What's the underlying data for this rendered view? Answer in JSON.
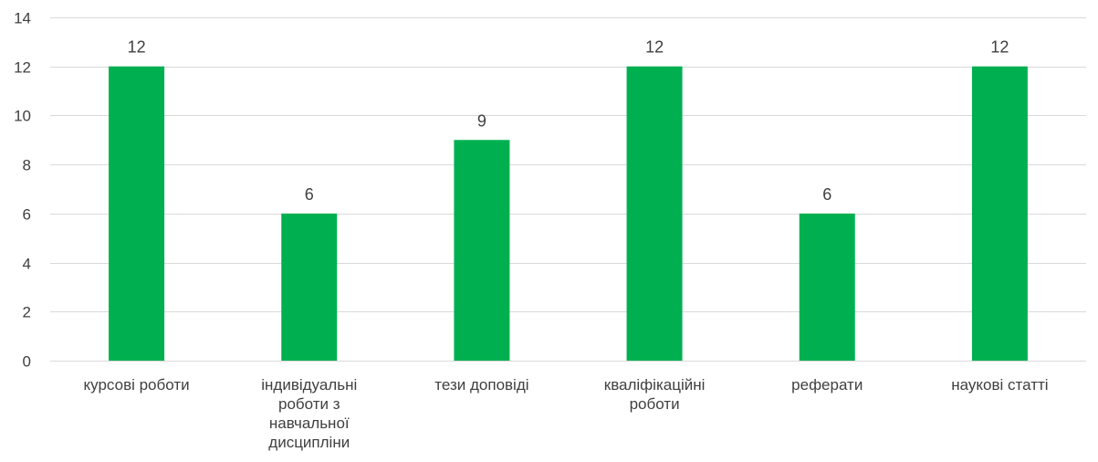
{
  "chart_data": {
    "type": "bar",
    "categories": [
      [
        "курсові роботи"
      ],
      [
        "індивідуальні",
        "роботи з",
        "навчальної",
        "дисципліни"
      ],
      [
        "тези доповіді"
      ],
      [
        "кваліфікаційні",
        "роботи"
      ],
      [
        "реферати"
      ],
      [
        "наукові статті"
      ]
    ],
    "values": [
      12,
      6,
      9,
      12,
      6,
      12
    ],
    "data_labels": [
      "12",
      "6",
      "9",
      "12",
      "6",
      "12"
    ],
    "ylim": [
      0,
      14
    ],
    "yticks": [
      "0",
      "2",
      "4",
      "6",
      "8",
      "10",
      "12",
      "14"
    ],
    "grid": true,
    "legend": "none",
    "colors": {
      "bar": "#00B050",
      "grid": "#D9D9D9",
      "text": "#404040"
    }
  }
}
